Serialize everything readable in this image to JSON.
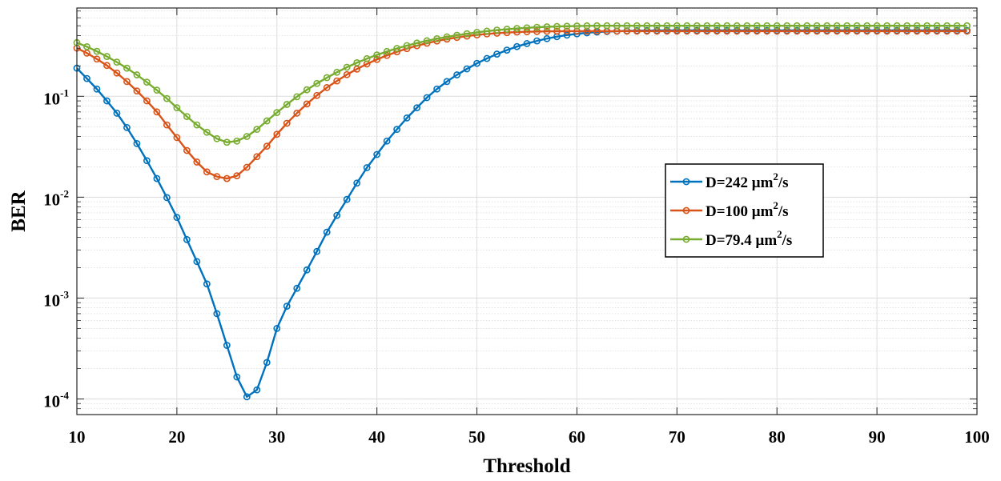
{
  "chart_data": {
    "type": "line",
    "title": "",
    "xlabel": "Threshold",
    "ylabel": "BER",
    "xlim": [
      10,
      100
    ],
    "ylim": [
      7e-05,
      0.75
    ],
    "yscale": "log",
    "grid": true,
    "legend_position": "center-right",
    "x_ticks": [
      10,
      20,
      30,
      40,
      50,
      60,
      70,
      80,
      90,
      100
    ],
    "x_tick_labels": [
      "10",
      "20",
      "30",
      "40",
      "50",
      "60",
      "70",
      "80",
      "90",
      "100"
    ],
    "y_ticks": [
      {
        "value": 0.1,
        "base": "10",
        "exp": "-1"
      },
      {
        "value": 0.01,
        "base": "10",
        "exp": "-2"
      },
      {
        "value": 0.001,
        "base": "10",
        "exp": "-3"
      },
      {
        "value": 0.0001,
        "base": "10",
        "exp": "-4"
      }
    ],
    "x": [
      10,
      11,
      12,
      13,
      14,
      15,
      16,
      17,
      18,
      19,
      20,
      21,
      22,
      23,
      24,
      25,
      26,
      27,
      28,
      29,
      30,
      31,
      32,
      33,
      34,
      35,
      36,
      37,
      38,
      39,
      40,
      41,
      42,
      43,
      44,
      45,
      46,
      47,
      48,
      49,
      50,
      51,
      52,
      53,
      54,
      55,
      56,
      57,
      58,
      59,
      60,
      61,
      62,
      63,
      64,
      65,
      66,
      67,
      68,
      69,
      70,
      71,
      72,
      73,
      74,
      75,
      76,
      77,
      78,
      79,
      80,
      81,
      82,
      83,
      84,
      85,
      86,
      87,
      88,
      89,
      90,
      91,
      92,
      93,
      94,
      95,
      96,
      97,
      98,
      99
    ],
    "series": [
      {
        "name": "D=242 μm²/s",
        "label_main": "D=242 μm",
        "label_sup": "2",
        "label_tail": "/s",
        "color": "#0072BD",
        "values": [
          0.19,
          0.15,
          0.118,
          0.09,
          0.068,
          0.049,
          0.034,
          0.023,
          0.0153,
          0.0099,
          0.0063,
          0.0038,
          0.0023,
          0.00138,
          0.0007,
          0.00034,
          0.000165,
          0.000105,
          0.000123,
          0.00023,
          0.0005,
          0.00083,
          0.00125,
          0.0019,
          0.0029,
          0.0045,
          0.0066,
          0.0095,
          0.0138,
          0.0196,
          0.0265,
          0.036,
          0.047,
          0.061,
          0.077,
          0.097,
          0.118,
          0.14,
          0.163,
          0.187,
          0.212,
          0.237,
          0.262,
          0.287,
          0.311,
          0.333,
          0.354,
          0.373,
          0.39,
          0.404,
          0.416,
          0.426,
          0.433,
          0.438,
          0.442,
          0.445,
          0.447,
          0.448,
          0.449,
          0.45,
          0.45,
          0.45,
          0.45,
          0.45,
          0.45,
          0.45,
          0.45,
          0.45,
          0.45,
          0.45,
          0.45,
          0.45,
          0.45,
          0.45,
          0.45,
          0.45,
          0.45,
          0.45,
          0.45,
          0.45,
          0.45,
          0.45,
          0.45,
          0.45,
          0.45,
          0.45,
          0.45,
          0.45,
          0.45,
          0.45
        ]
      },
      {
        "name": "D=100 μm²/s",
        "label_main": "D=100 μm",
        "label_sup": "2",
        "label_tail": "/s",
        "color": "#D95319",
        "values": [
          0.3,
          0.268,
          0.234,
          0.202,
          0.17,
          0.14,
          0.113,
          0.09,
          0.07,
          0.052,
          0.039,
          0.029,
          0.0223,
          0.0178,
          0.016,
          0.0153,
          0.0163,
          0.0198,
          0.0252,
          0.032,
          0.042,
          0.054,
          0.068,
          0.084,
          0.102,
          0.122,
          0.142,
          0.164,
          0.186,
          0.209,
          0.232,
          0.254,
          0.276,
          0.297,
          0.317,
          0.336,
          0.353,
          0.369,
          0.383,
          0.395,
          0.406,
          0.415,
          0.422,
          0.428,
          0.433,
          0.436,
          0.438,
          0.44,
          0.441,
          0.442,
          0.442,
          0.442,
          0.442,
          0.442,
          0.442,
          0.442,
          0.442,
          0.442,
          0.442,
          0.442,
          0.442,
          0.442,
          0.442,
          0.442,
          0.442,
          0.442,
          0.442,
          0.442,
          0.442,
          0.442,
          0.442,
          0.442,
          0.442,
          0.442,
          0.442,
          0.442,
          0.442,
          0.442,
          0.442,
          0.442,
          0.442,
          0.442,
          0.442,
          0.442,
          0.442,
          0.442,
          0.442,
          0.442,
          0.442,
          0.442
        ]
      },
      {
        "name": "D=79.4 μm²/s",
        "label_main": "D=79.4 μm",
        "label_sup": "2",
        "label_tail": "/s",
        "color": "#77AC30",
        "values": [
          0.34,
          0.31,
          0.279,
          0.248,
          0.218,
          0.19,
          0.163,
          0.138,
          0.115,
          0.095,
          0.077,
          0.063,
          0.052,
          0.044,
          0.038,
          0.035,
          0.036,
          0.04,
          0.047,
          0.057,
          0.069,
          0.083,
          0.099,
          0.116,
          0.134,
          0.153,
          0.173,
          0.194,
          0.215,
          0.236,
          0.257,
          0.278,
          0.298,
          0.318,
          0.337,
          0.355,
          0.372,
          0.388,
          0.403,
          0.417,
          0.43,
          0.442,
          0.453,
          0.462,
          0.47,
          0.477,
          0.483,
          0.488,
          0.492,
          0.495,
          0.497,
          0.499,
          0.5,
          0.5,
          0.5,
          0.5,
          0.5,
          0.5,
          0.5,
          0.5,
          0.5,
          0.5,
          0.5,
          0.5,
          0.5,
          0.5,
          0.5,
          0.5,
          0.5,
          0.5,
          0.5,
          0.5,
          0.5,
          0.5,
          0.5,
          0.5,
          0.5,
          0.5,
          0.5,
          0.5,
          0.5,
          0.5,
          0.5,
          0.5,
          0.5,
          0.5,
          0.5,
          0.5,
          0.5,
          0.5
        ]
      }
    ]
  }
}
